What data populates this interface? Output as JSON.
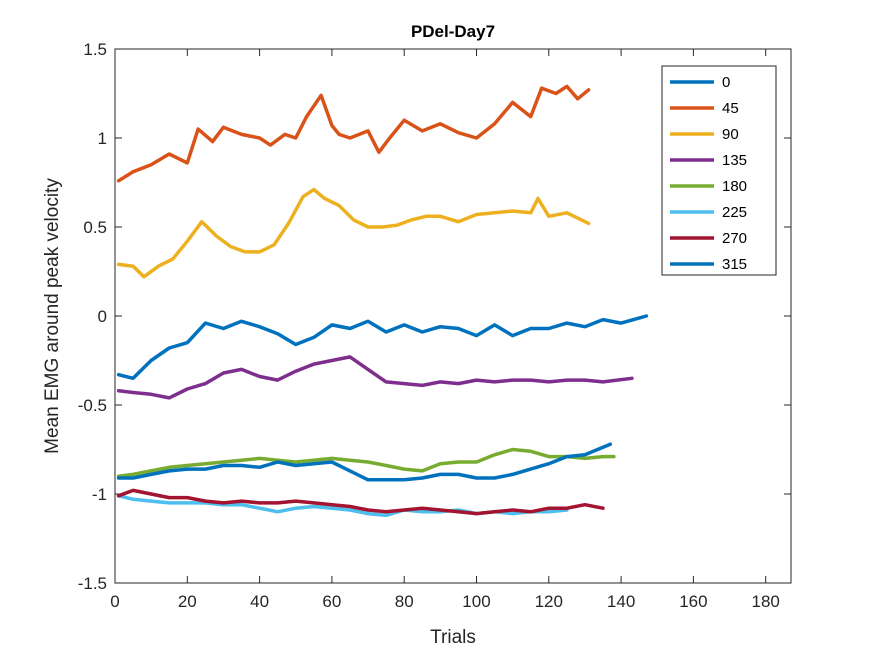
{
  "chart_data": {
    "type": "line",
    "title": "PDel-Day7",
    "xlabel": "Trials",
    "ylabel": "Mean EMG around peak velocity",
    "xlim": [
      0,
      187
    ],
    "ylim": [
      -1.5,
      1.5
    ],
    "xticks": [
      0,
      20,
      40,
      60,
      80,
      100,
      120,
      140,
      160,
      180
    ],
    "yticks": [
      -1.5,
      -1,
      -0.5,
      0,
      0.5,
      1,
      1.5
    ],
    "xtick_labels": [
      "0",
      "20",
      "40",
      "60",
      "80",
      "100",
      "120",
      "140",
      "160",
      "180"
    ],
    "ytick_labels": [
      "-1.5",
      "-1",
      "-0.5",
      "0",
      "0.5",
      "1",
      "1.5"
    ],
    "grid": false,
    "legend_position": "top-right",
    "series": [
      {
        "name": "0",
        "color": "#0072BD",
        "x": [
          1,
          5,
          10,
          15,
          20,
          25,
          30,
          35,
          40,
          45,
          50,
          55,
          60,
          65,
          70,
          75,
          80,
          85,
          90,
          95,
          100,
          105,
          110,
          115,
          120,
          125,
          130,
          135,
          140,
          147
        ],
        "y": [
          -0.33,
          -0.35,
          -0.25,
          -0.18,
          -0.15,
          -0.04,
          -0.07,
          -0.03,
          -0.06,
          -0.1,
          -0.16,
          -0.12,
          -0.05,
          -0.07,
          -0.03,
          -0.09,
          -0.05,
          -0.09,
          -0.06,
          -0.07,
          -0.11,
          -0.05,
          -0.11,
          -0.07,
          -0.07,
          -0.04,
          -0.06,
          -0.02,
          -0.04,
          0.0
        ]
      },
      {
        "name": "45",
        "color": "#D95319",
        "x": [
          1,
          5,
          10,
          15,
          20,
          23,
          27,
          30,
          35,
          40,
          43,
          47,
          50,
          53,
          57,
          60,
          62,
          65,
          70,
          73,
          76,
          80,
          85,
          90,
          95,
          100,
          105,
          110,
          115,
          118,
          122,
          125,
          128,
          131
        ],
        "y": [
          0.76,
          0.81,
          0.85,
          0.91,
          0.86,
          1.05,
          0.98,
          1.06,
          1.02,
          1.0,
          0.96,
          1.02,
          1.0,
          1.12,
          1.24,
          1.07,
          1.02,
          1.0,
          1.04,
          0.92,
          1.0,
          1.1,
          1.04,
          1.08,
          1.03,
          1.0,
          1.08,
          1.2,
          1.12,
          1.28,
          1.25,
          1.29,
          1.22,
          1.27
        ]
      },
      {
        "name": "90",
        "color": "#EDB120",
        "x": [
          1,
          5,
          8,
          12,
          16,
          20,
          24,
          28,
          32,
          36,
          40,
          44,
          48,
          52,
          55,
          58,
          62,
          66,
          70,
          74,
          78,
          82,
          86,
          90,
          95,
          100,
          105,
          110,
          115,
          117,
          120,
          125,
          131
        ],
        "y": [
          0.29,
          0.28,
          0.22,
          0.28,
          0.32,
          0.42,
          0.53,
          0.45,
          0.39,
          0.36,
          0.36,
          0.4,
          0.52,
          0.67,
          0.71,
          0.66,
          0.62,
          0.54,
          0.5,
          0.5,
          0.51,
          0.54,
          0.56,
          0.56,
          0.53,
          0.57,
          0.58,
          0.59,
          0.58,
          0.66,
          0.56,
          0.58,
          0.52
        ]
      },
      {
        "name": "135",
        "color": "#7E2F8E",
        "x": [
          1,
          5,
          10,
          15,
          20,
          25,
          30,
          35,
          40,
          45,
          50,
          55,
          60,
          65,
          70,
          75,
          80,
          85,
          90,
          95,
          100,
          105,
          110,
          115,
          120,
          125,
          130,
          135,
          143
        ],
        "y": [
          -0.42,
          -0.43,
          -0.44,
          -0.46,
          -0.41,
          -0.38,
          -0.32,
          -0.3,
          -0.34,
          -0.36,
          -0.31,
          -0.27,
          -0.25,
          -0.23,
          -0.3,
          -0.37,
          -0.38,
          -0.39,
          -0.37,
          -0.38,
          -0.36,
          -0.37,
          -0.36,
          -0.36,
          -0.37,
          -0.36,
          -0.36,
          -0.37,
          -0.35
        ]
      },
      {
        "name": "180",
        "color": "#77AC30",
        "x": [
          1,
          5,
          10,
          15,
          20,
          25,
          30,
          35,
          40,
          45,
          50,
          55,
          60,
          65,
          70,
          75,
          80,
          85,
          90,
          95,
          100,
          105,
          110,
          115,
          120,
          125,
          130,
          135,
          138
        ],
        "y": [
          -0.9,
          -0.89,
          -0.87,
          -0.85,
          -0.84,
          -0.83,
          -0.82,
          -0.81,
          -0.8,
          -0.81,
          -0.82,
          -0.81,
          -0.8,
          -0.81,
          -0.82,
          -0.84,
          -0.86,
          -0.87,
          -0.83,
          -0.82,
          -0.82,
          -0.78,
          -0.75,
          -0.76,
          -0.79,
          -0.79,
          -0.8,
          -0.79,
          -0.79
        ]
      },
      {
        "name": "225",
        "color": "#4DBEEE",
        "x": [
          1,
          5,
          10,
          15,
          20,
          25,
          30,
          35,
          40,
          45,
          50,
          55,
          60,
          65,
          70,
          75,
          80,
          85,
          90,
          95,
          100,
          105,
          110,
          115,
          120,
          125
        ],
        "y": [
          -1.01,
          -1.03,
          -1.04,
          -1.05,
          -1.05,
          -1.05,
          -1.06,
          -1.06,
          -1.08,
          -1.1,
          -1.08,
          -1.07,
          -1.08,
          -1.09,
          -1.11,
          -1.12,
          -1.09,
          -1.1,
          -1.1,
          -1.09,
          -1.11,
          -1.1,
          -1.11,
          -1.1,
          -1.1,
          -1.09
        ]
      },
      {
        "name": "270",
        "color": "#A2142F",
        "x": [
          1,
          5,
          10,
          15,
          20,
          25,
          30,
          35,
          40,
          45,
          50,
          55,
          60,
          65,
          70,
          75,
          80,
          85,
          90,
          95,
          100,
          105,
          110,
          115,
          120,
          125,
          130,
          135
        ],
        "y": [
          -1.01,
          -0.98,
          -1.0,
          -1.02,
          -1.02,
          -1.04,
          -1.05,
          -1.04,
          -1.05,
          -1.05,
          -1.04,
          -1.05,
          -1.06,
          -1.07,
          -1.09,
          -1.1,
          -1.09,
          -1.08,
          -1.09,
          -1.1,
          -1.11,
          -1.1,
          -1.09,
          -1.1,
          -1.08,
          -1.08,
          -1.06,
          -1.08
        ]
      },
      {
        "name": "315",
        "color": "#0072BD",
        "x": [
          1,
          5,
          10,
          15,
          20,
          25,
          30,
          35,
          40,
          45,
          50,
          55,
          60,
          65,
          70,
          75,
          80,
          85,
          90,
          95,
          100,
          105,
          110,
          115,
          120,
          125,
          130,
          137
        ],
        "y": [
          -0.91,
          -0.91,
          -0.89,
          -0.87,
          -0.86,
          -0.86,
          -0.84,
          -0.84,
          -0.85,
          -0.82,
          -0.84,
          -0.83,
          -0.82,
          -0.87,
          -0.92,
          -0.92,
          -0.92,
          -0.91,
          -0.89,
          -0.89,
          -0.91,
          -0.91,
          -0.89,
          -0.86,
          -0.83,
          -0.79,
          -0.78,
          -0.72
        ]
      }
    ]
  }
}
